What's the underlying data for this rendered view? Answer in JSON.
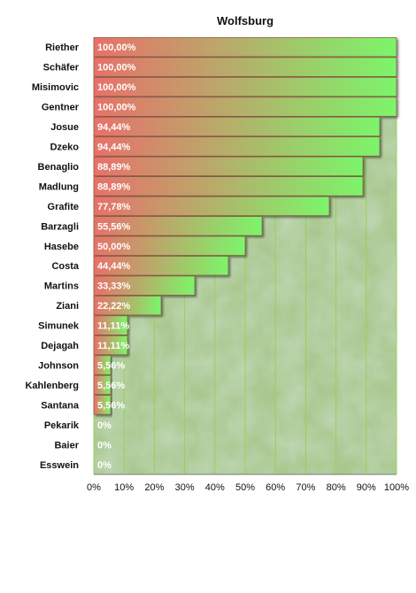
{
  "chart_data": {
    "type": "bar",
    "orientation": "horizontal",
    "title": "Wolfsburg",
    "xlabel": "",
    "ylabel": "",
    "xlim": [
      0,
      100
    ],
    "grid": true,
    "categories": [
      "Riether",
      "Schäfer",
      "Misimovic",
      "Gentner",
      "Josue",
      "Dzeko",
      "Benaglio",
      "Madlung",
      "Grafite",
      "Barzagli",
      "Hasebe",
      "Costa",
      "Martins",
      "Ziani",
      "Simunek",
      "Dejagah",
      "Johnson",
      "Kahlenberg",
      "Santana",
      "Pekarik",
      "Baier",
      "Esswein"
    ],
    "values": [
      100,
      100,
      100,
      100,
      94.44,
      94.44,
      88.89,
      88.89,
      77.78,
      55.56,
      50,
      44.44,
      33.33,
      22.22,
      11.11,
      11.11,
      5.56,
      5.56,
      5.56,
      0,
      0,
      0
    ],
    "value_labels": [
      "100,00%",
      "100,00%",
      "100,00%",
      "100,00%",
      "94,44%",
      "94,44%",
      "88,89%",
      "88,89%",
      "77,78%",
      "55,56%",
      "50,00%",
      "44,44%",
      "33,33%",
      "22,22%",
      "11,11%",
      "11,11%",
      "5,56%",
      "5,56%",
      "5,56%",
      "0%",
      "0%",
      "0%"
    ],
    "tick_labels": [
      "0%",
      "10%",
      "20%",
      "30%",
      "40%",
      "50%",
      "60%",
      "70%",
      "80%",
      "90%",
      "100%"
    ],
    "colors": {
      "bar_start": "#e8706a",
      "bar_end": "#7cf56a",
      "grid": "#9ccf5a",
      "background": "#a9c78e"
    }
  }
}
